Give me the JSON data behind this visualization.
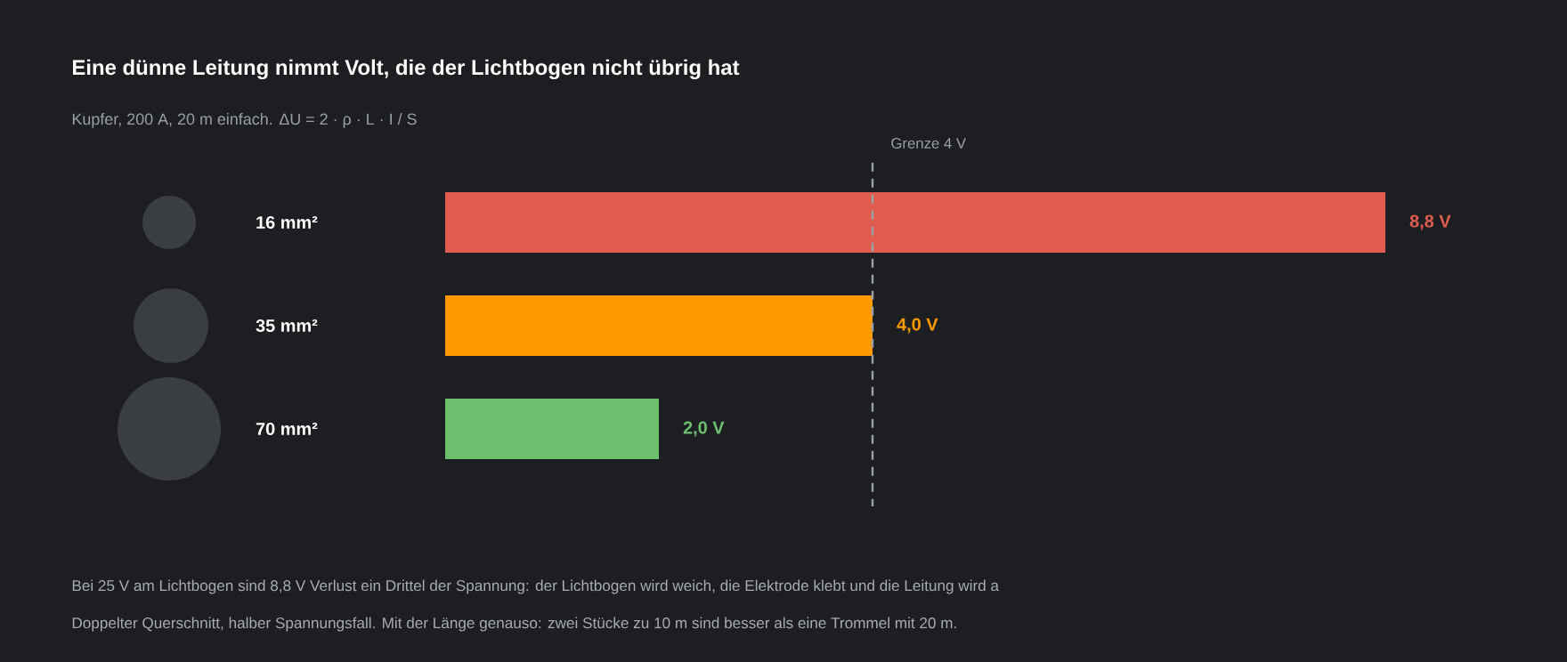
{
  "chart_data": {
    "type": "bar",
    "orientation": "horizontal",
    "title": "Eine dünne Leitung nimmt Volt, die der Lichtbogen nicht übrig hat",
    "subtitle": "Kupfer, 200 A, 20 m einfach. ΔU = 2 · ρ · L · I / S",
    "categories": [
      "16 mm²",
      "35 mm²",
      "70 mm²"
    ],
    "values": [
      8.8,
      4.0,
      2.0
    ],
    "colors": [
      "#e05c4e",
      "#ff9900",
      "#6cc070"
    ],
    "value_labels": [
      "8,8 V",
      "4,0 V",
      "2,0 V"
    ],
    "xlim": [
      0,
      8.8
    ],
    "tick_labels": "y",
    "ref_lines": [
      {
        "axis": "x",
        "value": 4,
        "label": "Grenze 4 V",
        "color": "#9aa0a6",
        "line_style": "dashed"
      }
    ],
    "annotations": [
      "Bei 25 V am Lichtbogen sind 8,8 V Verlust ein Drittel der Spannung: der Lichtbogen wird weich, die Elektrode klebt und die Leitung wird a",
      "Doppelter Querschnitt, halber Spannungsfall. Mit der Länge genauso: zwei Stücke zu 10 m sind besser als eine Trommel mit 20 m."
    ]
  }
}
